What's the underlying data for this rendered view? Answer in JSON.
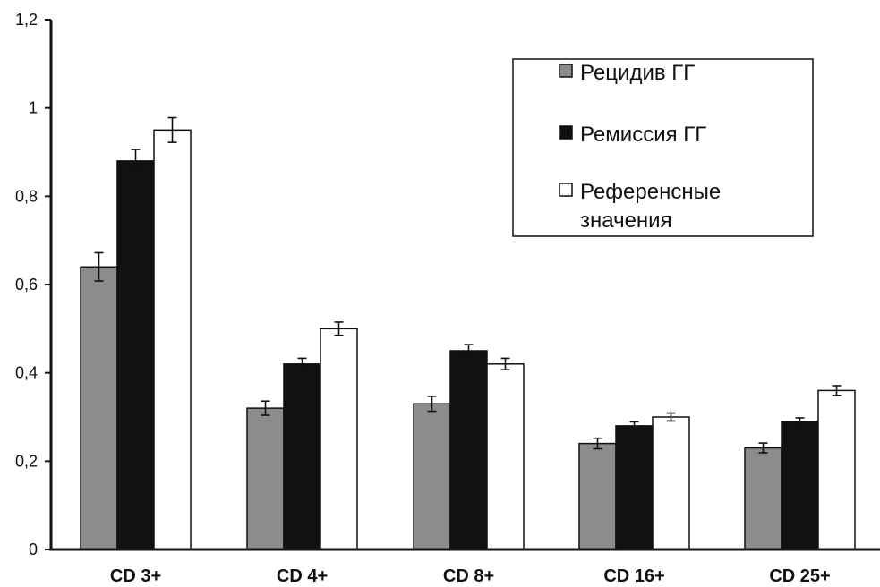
{
  "chart_data": {
    "type": "bar",
    "categories": [
      "CD 3+",
      "CD 4+",
      "CD 8+",
      "CD 16+",
      "CD 25+"
    ],
    "series": [
      {
        "name": "Рецидив ГГ",
        "color": "#8c8c8c",
        "values": [
          0.64,
          0.32,
          0.33,
          0.24,
          0.23
        ],
        "errors": [
          0.032,
          0.016,
          0.017,
          0.012,
          0.011
        ]
      },
      {
        "name": "Ремиссия ГГ",
        "color": "#111111",
        "values": [
          0.88,
          0.42,
          0.45,
          0.28,
          0.29
        ],
        "errors": [
          0.026,
          0.013,
          0.014,
          0.009,
          0.008
        ]
      },
      {
        "name": "Референсные значения",
        "legend_lines": [
          "Референсные",
          "значения"
        ],
        "color": "#ffffff",
        "values": [
          0.95,
          0.5,
          0.42,
          0.3,
          0.36
        ],
        "errors": [
          0.028,
          0.015,
          0.013,
          0.009,
          0.011
        ]
      }
    ],
    "yticks": [
      "0",
      "0,2",
      "0,4",
      "0,6",
      "0,8",
      "1",
      "1,2"
    ],
    "ylim": [
      0,
      1.2
    ],
    "grid": false,
    "legend_position": "top-right"
  }
}
